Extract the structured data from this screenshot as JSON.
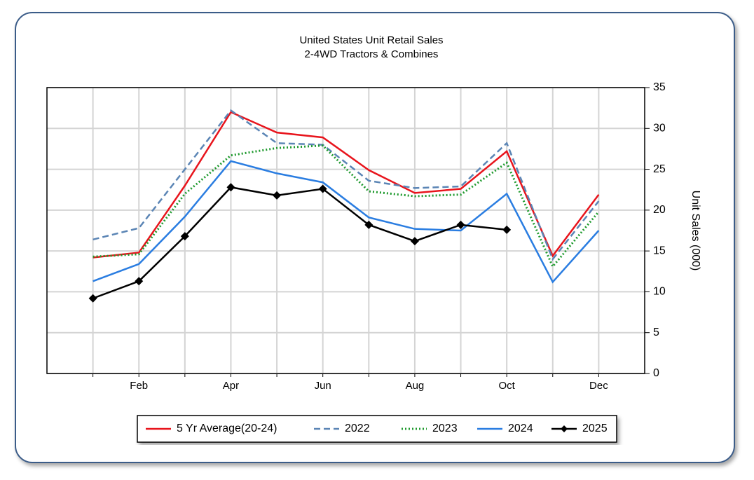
{
  "chart_data": {
    "type": "line",
    "title": "United States Unit Retail Sales",
    "subtitle": "2-4WD Tractors & Combines",
    "y_label": "Unit Sales (000)",
    "categories": [
      null,
      "Feb",
      null,
      "Apr",
      null,
      "Jun",
      null,
      "Aug",
      null,
      "Oct",
      null,
      "Dec"
    ],
    "ylim": [
      0,
      35
    ],
    "yticks": [
      0,
      5,
      10,
      15,
      20,
      25,
      30,
      35
    ],
    "grid": true,
    "y_axis_side": "right",
    "legend": "bottom",
    "series": [
      {
        "name": "5 Yr Average(20-24)",
        "color": "#e8141c",
        "style": "solid",
        "values": [
          14.2,
          14.8,
          23.0,
          32.0,
          29.5,
          28.9,
          24.9,
          22.1,
          22.6,
          27.2,
          14.4,
          21.9
        ]
      },
      {
        "name": "2022",
        "color": "#5b85b5",
        "style": "dashed",
        "values": [
          16.4,
          17.8,
          25.0,
          32.2,
          28.2,
          28.0,
          23.6,
          22.7,
          22.9,
          28.2,
          14.0,
          21.1
        ]
      },
      {
        "name": "2023",
        "color": "#1f9a2e",
        "style": "dotted",
        "values": [
          14.3,
          14.6,
          22.0,
          26.7,
          27.6,
          27.9,
          22.3,
          21.7,
          21.9,
          25.8,
          13.1,
          19.8
        ]
      },
      {
        "name": "2024",
        "color": "#2a7de1",
        "style": "solid",
        "values": [
          11.3,
          13.4,
          19.2,
          26.0,
          24.5,
          23.4,
          19.1,
          17.7,
          17.5,
          22.0,
          11.2,
          17.5
        ]
      },
      {
        "name": "2025",
        "color": "#000000",
        "style": "solid",
        "marker": "diamond",
        "values": [
          9.2,
          11.3,
          16.8,
          22.8,
          21.8,
          22.6,
          18.2,
          16.2,
          18.2,
          17.6,
          null,
          null
        ]
      }
    ]
  }
}
